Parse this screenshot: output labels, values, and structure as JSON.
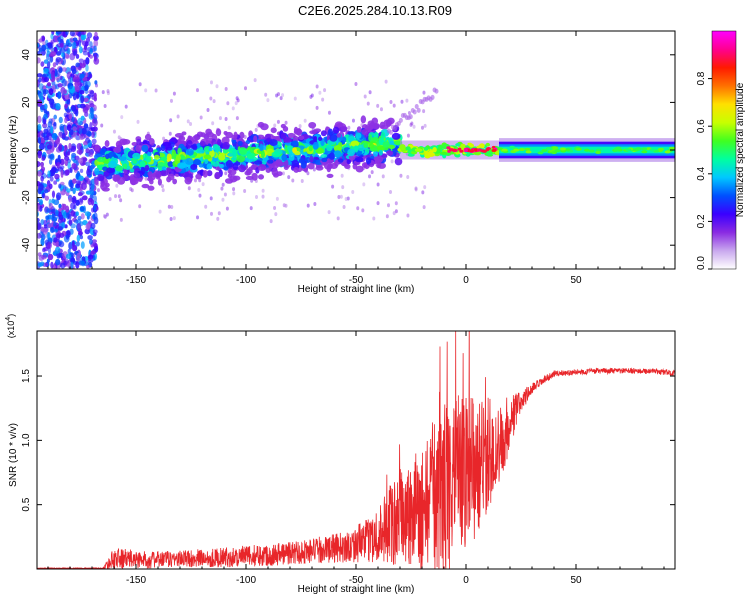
{
  "title": "C2E6.2025.284.10.13.R09",
  "chart_data": [
    {
      "type": "heatmap",
      "name": "spectrogram",
      "xlabel": "Height of straight line (km)",
      "ylabel": "Frequency (Hz)",
      "xlim": [
        -195,
        95
      ],
      "ylim": [
        -50,
        50
      ],
      "xticks": [
        -150,
        -100,
        -50,
        0,
        50
      ],
      "xtick_labels": [
        "-150",
        "-100",
        "-50",
        "0",
        "50"
      ],
      "yticks": [
        -40,
        -20,
        0,
        20,
        40
      ],
      "ytick_labels": [
        "-40",
        "-20",
        "0",
        "20",
        "40"
      ],
      "colorbar": {
        "label": "Normalized spectral amplitude",
        "range": [
          0,
          1
        ],
        "ticks": [
          0,
          0.2,
          0.4,
          0.6,
          0.8
        ],
        "tick_labels": [
          "0.0",
          "0.2",
          "0.4",
          "0.6",
          "0.8"
        ],
        "colors": [
          "#ffffff",
          "#c9a8ee",
          "#8a2be2",
          "#3a00ff",
          "#0050ff",
          "#00c8ff",
          "#00ffa0",
          "#40ff20",
          "#c8ff00",
          "#ffe000",
          "#ff7000",
          "#ff1a00",
          "#ff0090",
          "#ff00ff"
        ]
      },
      "regions": [
        {
          "x": [
            -195,
            -168
          ],
          "freq_spread": 50,
          "amp": 0.12,
          "desc": "scattered noise"
        },
        {
          "x": [
            -168,
            -30
          ],
          "freq_center_start": -6,
          "freq_center_end": 3,
          "freq_spread": 8,
          "amp": 0.35
        },
        {
          "x": [
            -30,
            15
          ],
          "freq_center": 0,
          "freq_spread": 2,
          "amp": 0.85
        },
        {
          "x": [
            15,
            95
          ],
          "freq_center": 0,
          "freq_spread": 3,
          "amp": 0.45
        }
      ]
    },
    {
      "type": "line",
      "name": "snr",
      "xlabel": "Height of straight line (km)",
      "ylabel": "SNR (10 * v/v)",
      "y_multiplier": "(x10",
      "y_multiplier_exp": "4",
      "y_multiplier_close": ")",
      "xlim": [
        -195,
        95
      ],
      "ylim": [
        0,
        1.85
      ],
      "xticks": [
        -150,
        -100,
        -50,
        0,
        50
      ],
      "xtick_labels": [
        "-150",
        "-100",
        "-50",
        "0",
        "50"
      ],
      "yticks": [
        0.5,
        1.0,
        1.5
      ],
      "ytick_labels": [
        "0.5",
        "1.0",
        "1.5"
      ],
      "color": "#e8262a",
      "envelope": {
        "x": [
          -195,
          -165,
          -160,
          -155,
          -145,
          -130,
          -110,
          -90,
          -70,
          -55,
          -45,
          -40,
          -35,
          -30,
          -25,
          -20,
          -15,
          -10,
          -5,
          0,
          5,
          10,
          15,
          20,
          25,
          30,
          40,
          50,
          60,
          70,
          80,
          90,
          95
        ],
        "mean": [
          0.0,
          0.0,
          0.08,
          0.08,
          0.07,
          0.08,
          0.09,
          0.11,
          0.14,
          0.17,
          0.22,
          0.27,
          0.33,
          0.38,
          0.42,
          0.45,
          0.55,
          0.6,
          0.7,
          0.75,
          0.8,
          0.85,
          0.95,
          1.15,
          1.3,
          1.4,
          1.52,
          1.53,
          1.54,
          1.54,
          1.54,
          1.53,
          1.52
        ],
        "noise": [
          0.0,
          0.01,
          0.08,
          0.07,
          0.06,
          0.06,
          0.07,
          0.08,
          0.09,
          0.11,
          0.15,
          0.2,
          0.28,
          0.35,
          0.4,
          0.45,
          0.55,
          0.65,
          0.6,
          0.55,
          0.5,
          0.4,
          0.3,
          0.2,
          0.08,
          0.04,
          0.02,
          0.02,
          0.02,
          0.02,
          0.02,
          0.02,
          0.02
        ]
      }
    }
  ]
}
